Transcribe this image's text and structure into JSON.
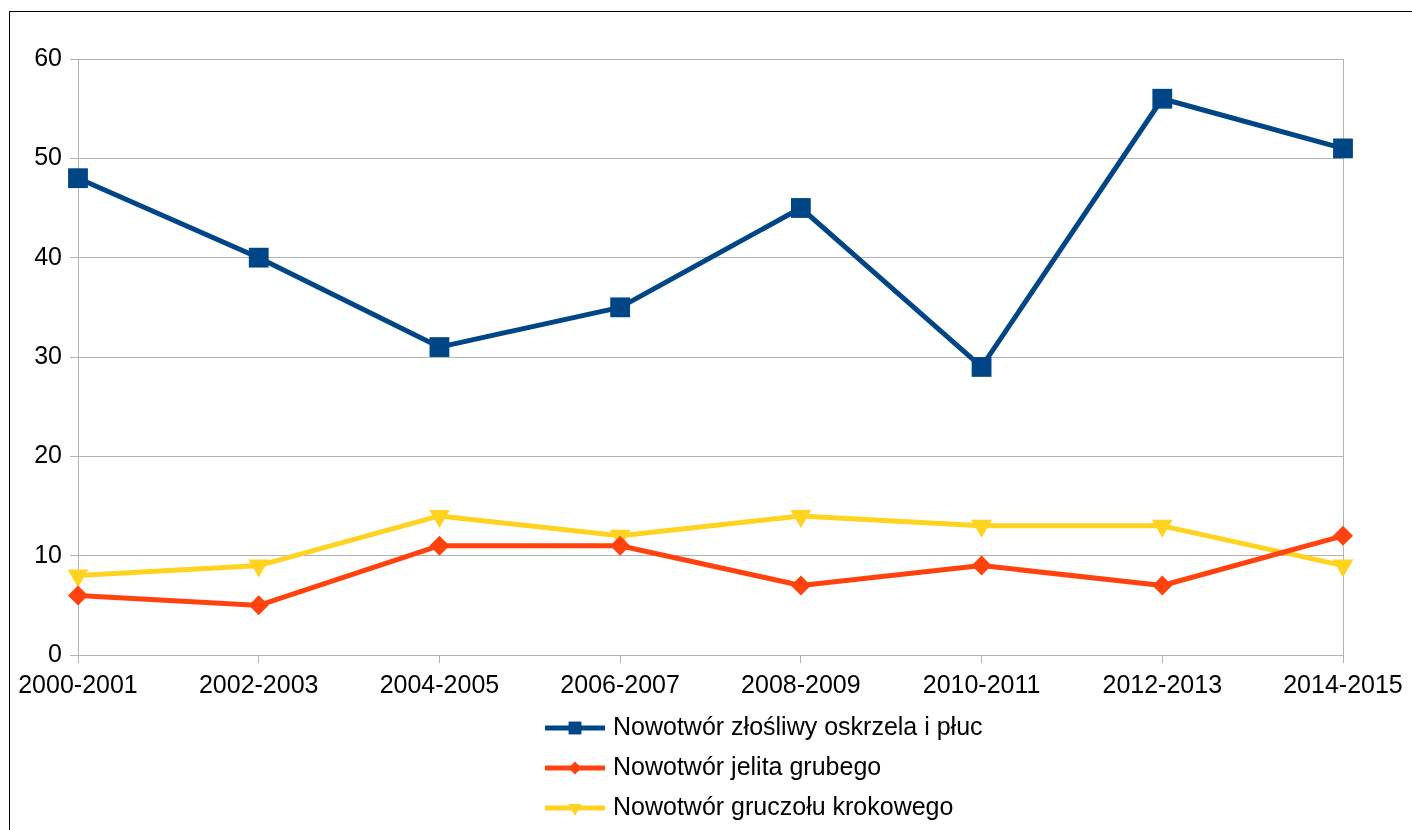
{
  "chart_data": {
    "type": "line",
    "categories": [
      "2000-2001",
      "2002-2003",
      "2004-2005",
      "2006-2007",
      "2008-2009",
      "2010-2011",
      "2012-2013",
      "2014-2015"
    ],
    "series": [
      {
        "name": "Nowotwór złośliwy oskrzela i płuc",
        "color": "#004586",
        "marker": "square",
        "values": [
          48,
          40,
          31,
          35,
          45,
          29,
          56,
          51
        ]
      },
      {
        "name": "Nowotwór jelita grubego",
        "color": "#ff420e",
        "marker": "diamond",
        "values": [
          6,
          5,
          11,
          11,
          7,
          9,
          7,
          12
        ]
      },
      {
        "name": "Nowotwór gruczołu krokowego",
        "color": "#ffd320",
        "marker": "triangle",
        "values": [
          8,
          9,
          14,
          12,
          14,
          13,
          13,
          9
        ]
      }
    ],
    "ylim": [
      0,
      60
    ],
    "yticks": [
      0,
      10,
      20,
      30,
      40,
      50,
      60
    ],
    "grid": "y",
    "legend": "bottom",
    "line_style": "solid"
  }
}
